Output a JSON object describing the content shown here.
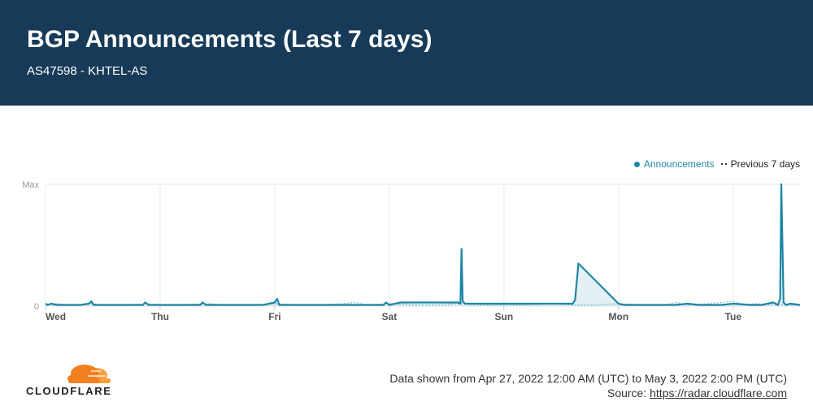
{
  "header": {
    "title": "BGP Announcements (Last 7 days)",
    "subtitle": "AS47598 - KHTEL-AS"
  },
  "legend": {
    "current": "Announcements",
    "previous": "Previous 7 days"
  },
  "colors": {
    "header_bg": "#163a57",
    "current_series": "#1e86a6",
    "previous_series": "#7ec4da",
    "brand_orange": "#f38020"
  },
  "chart_data": {
    "type": "line",
    "title": "BGP Announcements (Last 7 days)",
    "ylim": [
      0,
      100
    ],
    "y_tick_labels": [
      "0",
      "Max"
    ],
    "x_tick_labels": [
      "Wed",
      "Thu",
      "Fri",
      "Sat",
      "Sun",
      "Mon",
      "Tue"
    ],
    "xlim_days": [
      0,
      6.583
    ],
    "grid": true,
    "legend_position": "top-right",
    "series": [
      {
        "name": "Announcements",
        "x": [
          0,
          0.02,
          0.05,
          0.1,
          0.2,
          0.3,
          0.38,
          0.4,
          0.42,
          0.5,
          0.6,
          0.7,
          0.85,
          0.87,
          0.9,
          1.0,
          1.2,
          1.35,
          1.37,
          1.4,
          1.5,
          1.7,
          1.9,
          2.0,
          2.02,
          2.04,
          2.2,
          2.4,
          2.6,
          2.8,
          2.95,
          2.97,
          3.0,
          3.1,
          3.25,
          3.4,
          3.6,
          3.62,
          3.63,
          3.64,
          3.66,
          3.8,
          4.0,
          4.3,
          4.6,
          4.62,
          4.65,
          5.0,
          5.05,
          5.2,
          5.4,
          5.5,
          5.6,
          5.7,
          5.8,
          5.9,
          6.0,
          6.15,
          6.25,
          6.35,
          6.39,
          6.41,
          6.42,
          6.44,
          6.46,
          6.5,
          6.583
        ],
        "y": [
          2,
          1,
          2,
          1,
          1,
          1,
          2,
          4,
          1,
          1,
          1,
          1,
          1,
          3,
          1,
          1,
          1,
          1,
          3,
          1,
          1,
          1,
          1,
          3,
          6,
          1,
          1,
          1,
          1,
          1,
          1,
          3,
          1,
          3,
          3,
          3,
          3,
          2,
          47,
          4,
          2,
          2,
          2,
          2,
          2,
          5,
          35,
          2,
          1,
          1,
          1,
          1,
          2,
          1,
          1,
          1,
          2,
          1,
          1,
          3,
          1,
          6,
          100,
          3,
          1,
          2,
          1
        ]
      },
      {
        "name": "Previous 7 days",
        "x": [
          0,
          0.1,
          0.2,
          0.3,
          0.4,
          0.5,
          0.7,
          0.9,
          1.0,
          1.2,
          1.4,
          1.6,
          1.8,
          2.0,
          2.2,
          2.4,
          2.6,
          2.7,
          2.8,
          3.0,
          3.2,
          3.4,
          3.6,
          3.8,
          4.0,
          4.2,
          4.4,
          4.6,
          4.8,
          5.0,
          5.2,
          5.4,
          5.5,
          5.6,
          5.8,
          6.0,
          6.1,
          6.2,
          6.4,
          6.583
        ],
        "y": [
          1,
          2,
          1,
          1,
          2,
          1,
          1,
          2,
          1,
          1,
          2,
          1,
          1,
          2,
          1,
          1,
          2,
          3,
          1,
          2,
          1,
          1,
          2,
          1,
          1,
          1,
          2,
          1,
          1,
          2,
          1,
          1,
          3,
          1,
          2,
          4,
          1,
          2,
          1,
          1
        ]
      }
    ]
  },
  "brand": {
    "name": "CLOUDFLARE"
  },
  "footer": {
    "range_text": "Data shown from Apr 27, 2022 12:00 AM (UTC) to May 3, 2022 2:00 PM (UTC)",
    "source_label": "Source:",
    "source_link": "https://radar.cloudflare.com"
  }
}
